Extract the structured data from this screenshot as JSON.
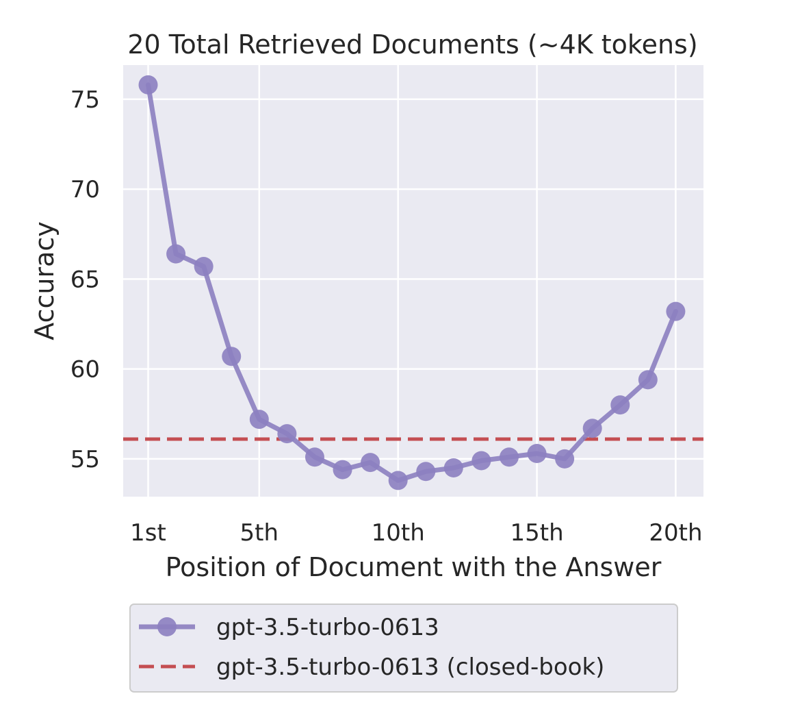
{
  "chart_data": {
    "type": "line",
    "title": "20 Total Retrieved Documents (~4K tokens)",
    "xlabel": "Position of Document with the Answer",
    "ylabel": "Accuracy",
    "x": [
      1,
      2,
      3,
      4,
      5,
      6,
      7,
      8,
      9,
      10,
      11,
      12,
      13,
      14,
      15,
      16,
      17,
      18,
      19,
      20
    ],
    "xticks": [
      1,
      5,
      10,
      15,
      20
    ],
    "xtick_labels": [
      "1st",
      "5th",
      "10th",
      "15th",
      "20th"
    ],
    "yticks": [
      55,
      60,
      65,
      70,
      75
    ],
    "ytick_labels": [
      "55",
      "60",
      "65",
      "70",
      "75"
    ],
    "xlim": [
      0.1,
      21
    ],
    "ylim": [
      52.9,
      76.9
    ],
    "grid": true,
    "legend_position": "below",
    "series": [
      {
        "name": "gpt-3.5-turbo-0613",
        "style": "line-marker",
        "color": "#8C7FC0",
        "values": [
          75.8,
          66.4,
          65.7,
          60.7,
          57.2,
          56.4,
          55.1,
          54.4,
          54.8,
          53.8,
          54.3,
          54.5,
          54.9,
          55.1,
          55.3,
          55.0,
          56.7,
          58.0,
          59.4,
          63.2
        ]
      },
      {
        "name": "gpt-3.5-turbo-0613 (closed-book)",
        "style": "dashed-hline",
        "color": "#C44E52",
        "value": 56.1
      }
    ]
  },
  "colors": {
    "plot_background": "#EAEAF2",
    "grid": "#FFFFFF",
    "text": "#262626"
  }
}
